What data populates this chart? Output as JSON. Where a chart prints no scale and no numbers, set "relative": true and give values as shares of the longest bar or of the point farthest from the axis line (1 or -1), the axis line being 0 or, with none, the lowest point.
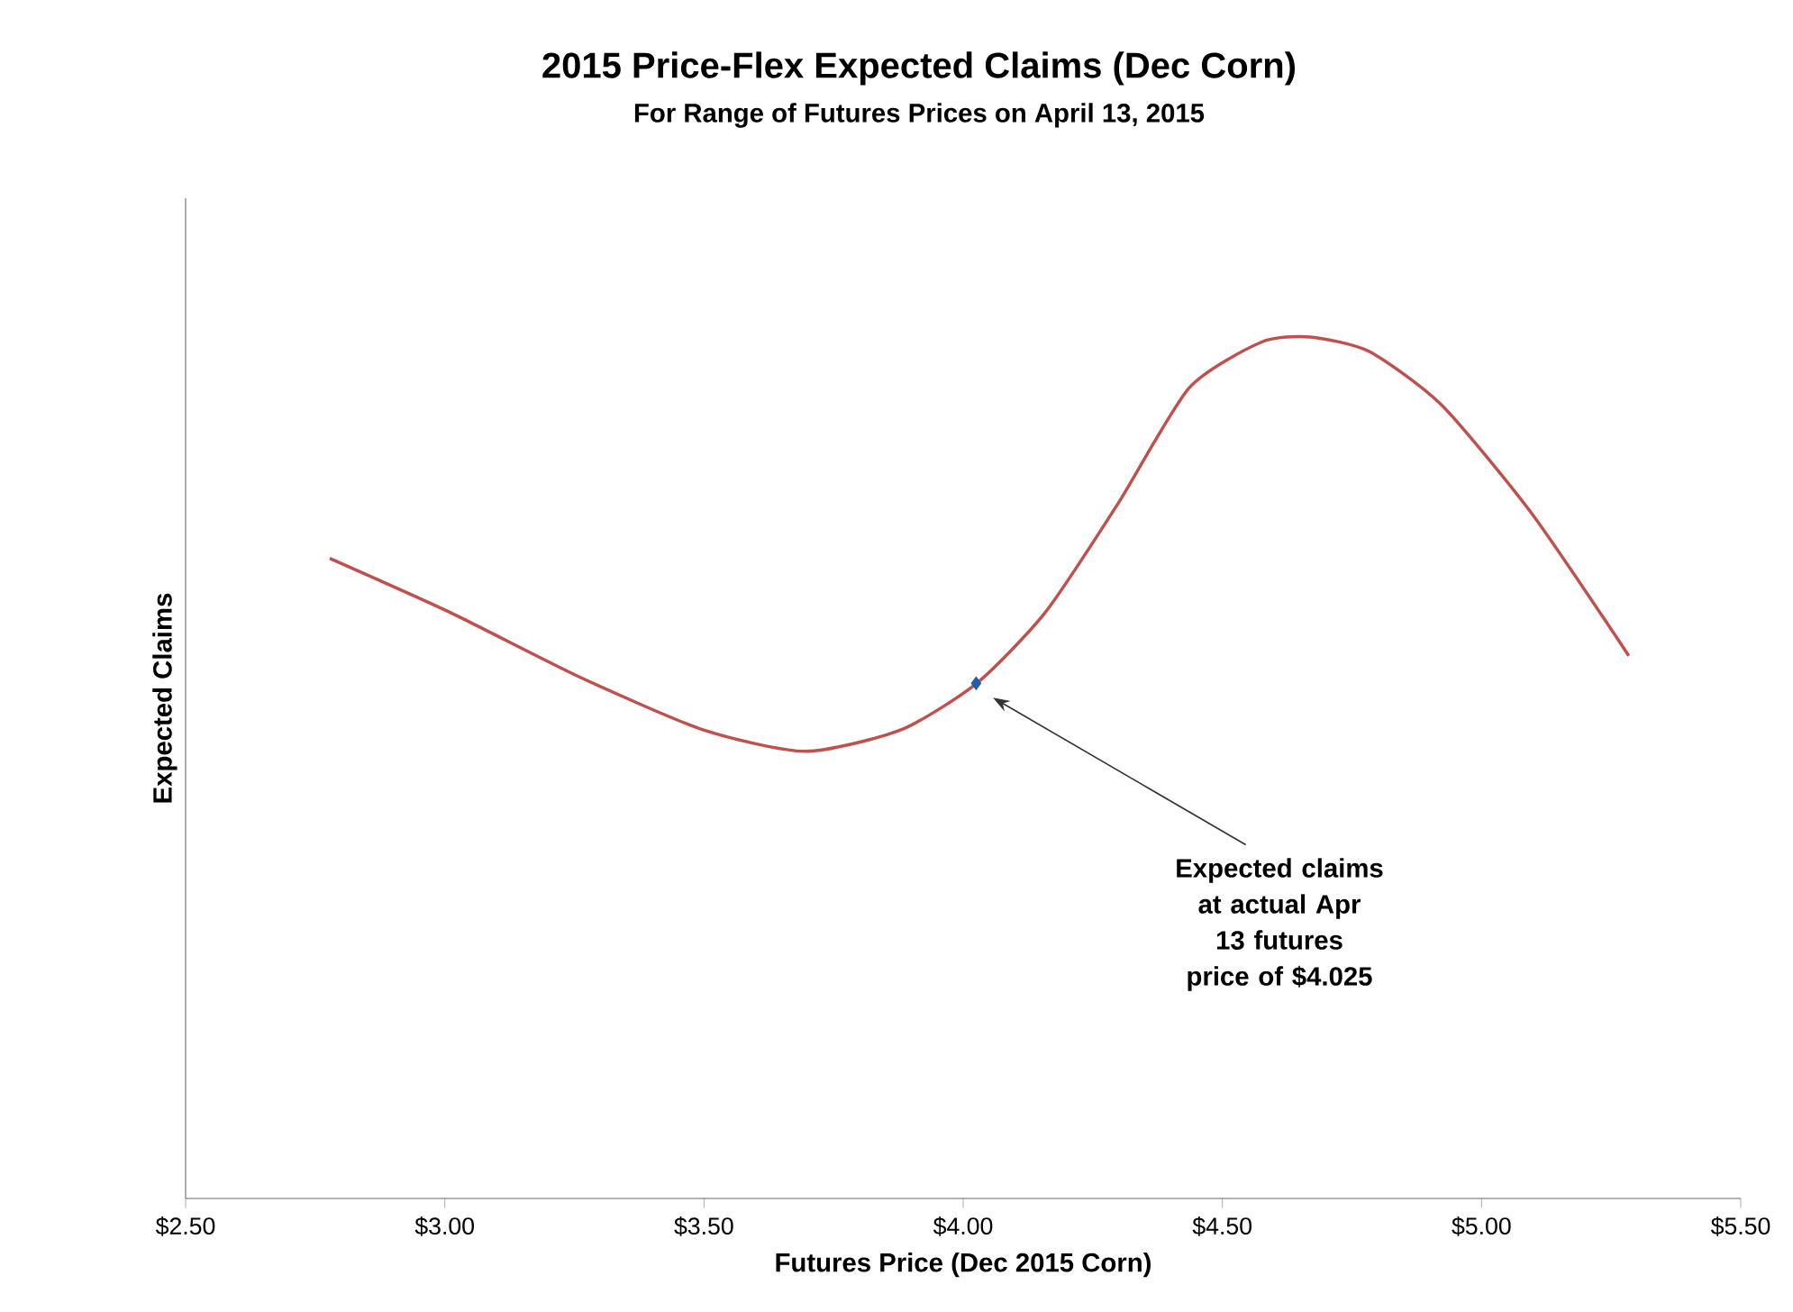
{
  "chart_data": {
    "type": "line",
    "title": "2015 Price-Flex Expected Claims (Dec Corn)",
    "subtitle": "For Range of Futures Prices on April 13, 2015",
    "xlabel": "Futures Price (Dec 2015 Corn)",
    "ylabel": "Expected Claims",
    "relative": true,
    "xlim": [
      2.5,
      5.5
    ],
    "xticks": [
      {
        "value": 2.5,
        "label": "$2.50"
      },
      {
        "value": 3.0,
        "label": "$3.00"
      },
      {
        "value": 3.5,
        "label": "$3.50"
      },
      {
        "value": 4.0,
        "label": "$4.00"
      },
      {
        "value": 4.5,
        "label": "$4.50"
      },
      {
        "value": 5.0,
        "label": "$5.00"
      },
      {
        "value": 5.5,
        "label": "$5.50"
      }
    ],
    "series": [
      {
        "color": "#c0504d",
        "marker": "none",
        "x": [
          2.778,
          3.011,
          3.254,
          3.498,
          3.696,
          3.88,
          4.026,
          4.158,
          4.297,
          4.436,
          4.575,
          4.669,
          4.784,
          4.923,
          5.097,
          5.284
        ],
        "values": [
          0.743,
          0.68,
          0.607,
          0.544,
          0.519,
          0.544,
          0.598,
          0.68,
          0.805,
          0.941,
          0.994,
          1.0,
          0.983,
          0.921,
          0.795,
          0.63
        ]
      },
      {
        "type": "scatter",
        "color": "#1f5fa8",
        "marker": "diamond",
        "x": [
          4.025
        ],
        "values": [
          0.598
        ]
      }
    ],
    "annotations": [
      "Expected claims at actual Apr 13 futures price of $4.025"
    ],
    "grid": false
  }
}
